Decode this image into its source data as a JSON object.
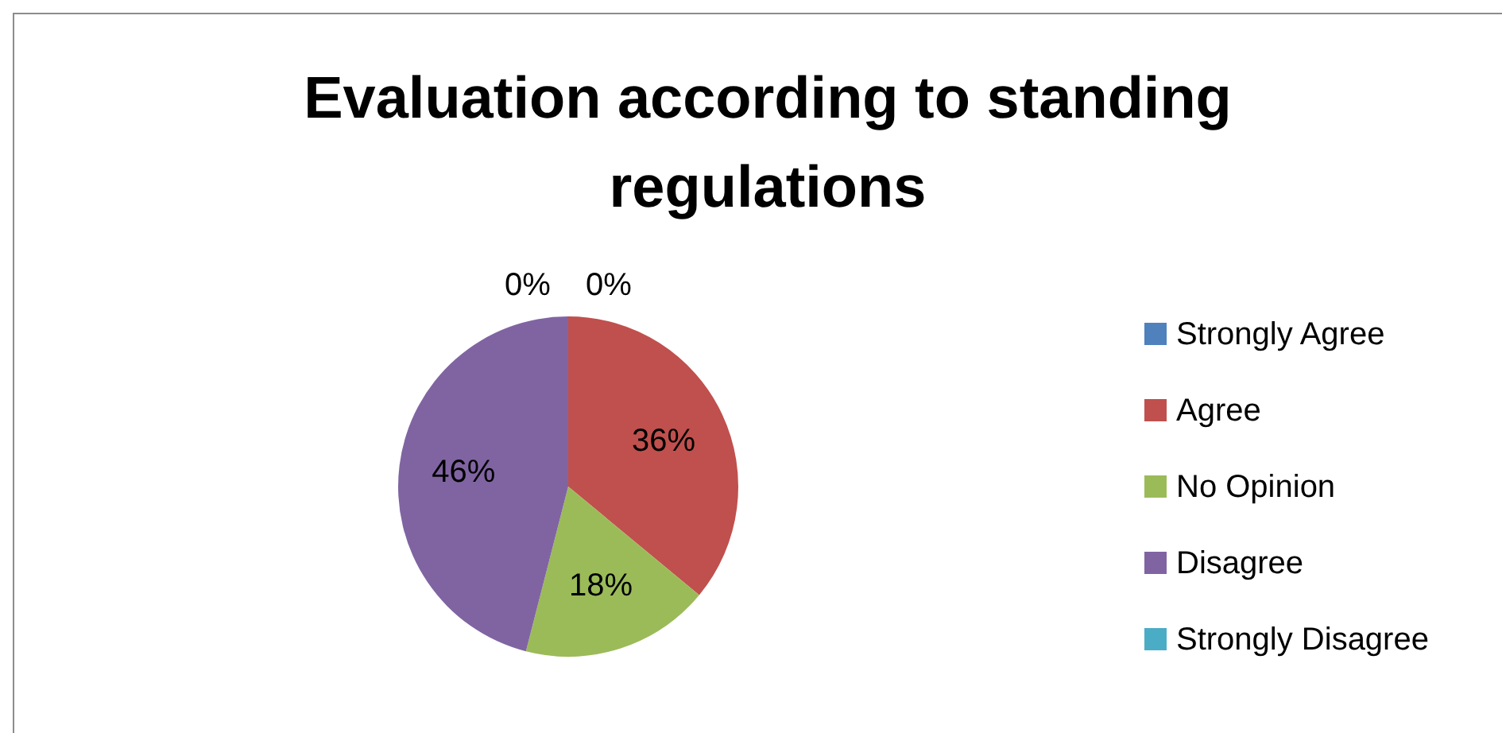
{
  "chart_data": {
    "type": "pie",
    "title": "Evaluation according to standing regulations",
    "categories": [
      "Strongly Agree",
      "Agree",
      "No Opinion",
      "Disagree",
      "Strongly Disagree"
    ],
    "values": [
      0,
      36,
      18,
      46,
      0
    ],
    "colors": [
      "#4f81bd",
      "#c0504d",
      "#9bbb59",
      "#8064a2",
      "#4bacc6"
    ],
    "value_labels": [
      "0%",
      "36%",
      "18%",
      "46%",
      "0%"
    ],
    "legend": "right"
  }
}
